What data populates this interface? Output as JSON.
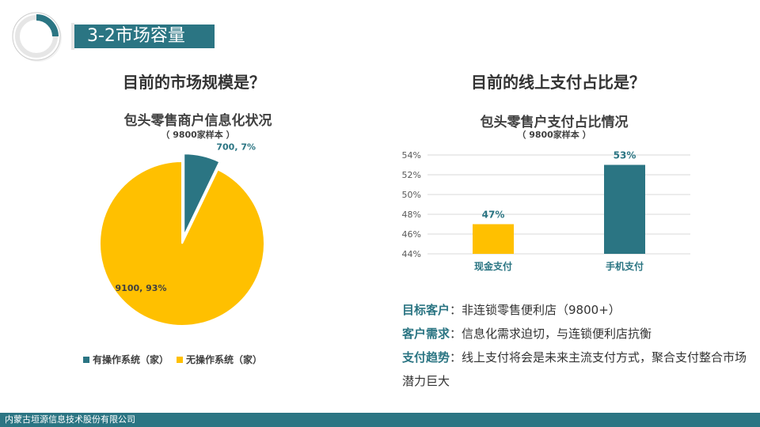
{
  "slide": {
    "title": "3-2市场容量",
    "footer": "内蒙古垣源信息技术股份有限公司"
  },
  "left": {
    "heading": "目前的市场规模是？",
    "chart_title": "包头零售商户信息化状况",
    "chart_subtitle": "（ 9800家样本 ）"
  },
  "right": {
    "heading": "目前的线上支付占比是？",
    "chart_title": "包头零售户支付占比情况",
    "chart_subtitle": "（ 9800家样本 ）"
  },
  "colors": {
    "teal": "#2b7583",
    "gold": "#ffc000",
    "grid": "#d9d9d9",
    "text": "#404040"
  },
  "chart_data": [
    {
      "type": "pie",
      "title": "包头零售商户信息化状况",
      "subtitle": "（ 9800家样本 ）",
      "slices": [
        {
          "name": "有操作系统（家）",
          "value": 700,
          "percent": 7,
          "label": "700, 7%",
          "color": "#2b7583",
          "exploded": true
        },
        {
          "name": "无操作系统（家）",
          "value": 9100,
          "percent": 93,
          "label": "9100, 93%",
          "color": "#ffc000",
          "exploded": false
        }
      ],
      "legend": "bottom"
    },
    {
      "type": "bar",
      "title": "包头零售户支付占比情况",
      "subtitle": "（ 9800家样本 ）",
      "categories": [
        "现金支付",
        "手机支付"
      ],
      "values": [
        47,
        53
      ],
      "data_labels": [
        "47%",
        "53%"
      ],
      "colors": [
        "#ffc000",
        "#2b7583"
      ],
      "ylim": [
        44,
        54
      ],
      "yticks": [
        "44%",
        "46%",
        "48%",
        "50%",
        "52%",
        "54%"
      ],
      "grid": true
    }
  ],
  "info": [
    {
      "label": "目标客户",
      "text": "：非连锁零售便利店（9800+）"
    },
    {
      "label": "客户需求",
      "text": "：信息化需求迫切，与连锁便利店抗衡"
    },
    {
      "label": "支付趋势",
      "text": "：线上支付将会是未来主流支付方式，聚合支付整合市场潜力巨大"
    }
  ]
}
